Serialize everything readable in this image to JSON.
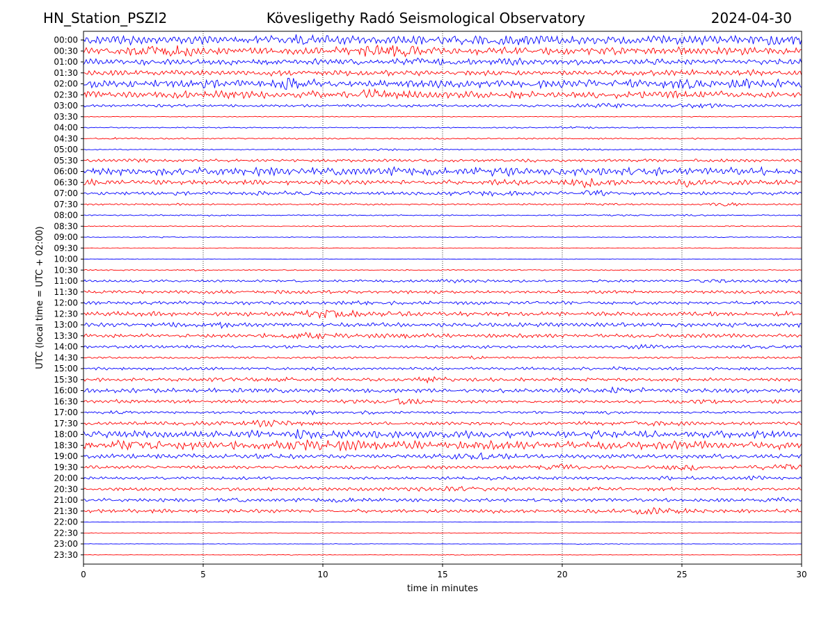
{
  "header": {
    "station": "HN_Station_PSZI2",
    "observatory": "Kövesligethy Radó Seismological Observatory",
    "date": "2024-04-30"
  },
  "chart_data": {
    "type": "line",
    "xlabel": "time in minutes",
    "ylabel": "UTC (local time = UTC + 02:00)",
    "xlim": [
      0,
      30
    ],
    "x_ticks": [
      "0",
      "5",
      "10",
      "15",
      "20",
      "25",
      "30"
    ],
    "grid": "vertical dotted lines at 5-minute ticks",
    "colors": {
      "even_rows": "#0000ff",
      "odd_rows": "#ff0000",
      "grid": "#000000"
    },
    "rows": [
      {
        "label": "00:00",
        "activity": 0.85
      },
      {
        "label": "00:30",
        "activity": 0.75
      },
      {
        "label": "01:00",
        "activity": 0.6
      },
      {
        "label": "01:30",
        "activity": 0.55
      },
      {
        "label": "02:00",
        "activity": 0.8
      },
      {
        "label": "02:30",
        "activity": 0.75
      },
      {
        "label": "03:00",
        "activity": 0.3
      },
      {
        "label": "03:30",
        "activity": 0.08
      },
      {
        "label": "04:00",
        "activity": 0.12
      },
      {
        "label": "04:30",
        "activity": 0.15
      },
      {
        "label": "05:00",
        "activity": 0.12
      },
      {
        "label": "05:30",
        "activity": 0.3
      },
      {
        "label": "06:00",
        "activity": 0.8
      },
      {
        "label": "06:30",
        "activity": 0.5
      },
      {
        "label": "07:00",
        "activity": 0.35
      },
      {
        "label": "07:30",
        "activity": 0.18
      },
      {
        "label": "08:00",
        "activity": 0.12
      },
      {
        "label": "08:30",
        "activity": 0.1
      },
      {
        "label": "09:00",
        "activity": 0.08
      },
      {
        "label": "09:30",
        "activity": 0.06
      },
      {
        "label": "10:00",
        "activity": 0.06
      },
      {
        "label": "10:30",
        "activity": 0.12
      },
      {
        "label": "11:00",
        "activity": 0.25
      },
      {
        "label": "11:30",
        "activity": 0.35
      },
      {
        "label": "12:00",
        "activity": 0.35
      },
      {
        "label": "12:30",
        "activity": 0.45
      },
      {
        "label": "13:00",
        "activity": 0.45
      },
      {
        "label": "13:30",
        "activity": 0.4
      },
      {
        "label": "14:00",
        "activity": 0.3
      },
      {
        "label": "14:30",
        "activity": 0.2
      },
      {
        "label": "15:00",
        "activity": 0.3
      },
      {
        "label": "15:30",
        "activity": 0.35
      },
      {
        "label": "16:00",
        "activity": 0.45
      },
      {
        "label": "16:30",
        "activity": 0.35
      },
      {
        "label": "17:00",
        "activity": 0.25
      },
      {
        "label": "17:30",
        "activity": 0.35
      },
      {
        "label": "18:00",
        "activity": 0.75
      },
      {
        "label": "18:30",
        "activity": 0.85
      },
      {
        "label": "19:00",
        "activity": 0.45
      },
      {
        "label": "19:30",
        "activity": 0.35
      },
      {
        "label": "20:00",
        "activity": 0.3
      },
      {
        "label": "20:30",
        "activity": 0.35
      },
      {
        "label": "21:00",
        "activity": 0.35
      },
      {
        "label": "21:30",
        "activity": 0.4
      },
      {
        "label": "22:00",
        "activity": 0.05
      },
      {
        "label": "22:30",
        "activity": 0.05
      },
      {
        "label": "23:00",
        "activity": 0.05
      },
      {
        "label": "23:30",
        "activity": 0.05
      }
    ]
  }
}
